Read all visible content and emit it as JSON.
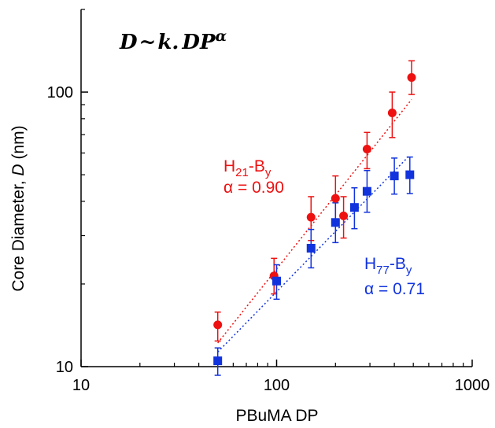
{
  "chart_data": {
    "type": "scatter",
    "xlabel": "PBuMA DP",
    "ylabel_prefix": "Core Diameter, ",
    "ylabel_symbol": "D",
    "ylabel_suffix": " (nm)",
    "x_scale": "log",
    "y_scale": "log",
    "xlim": [
      10,
      1000
    ],
    "ylim": [
      10,
      200
    ],
    "x_ticks": [
      10,
      100,
      1000
    ],
    "x_tick_labels": [
      "10",
      "100",
      "1000"
    ],
    "y_ticks": [
      10,
      100
    ],
    "y_tick_labels": [
      "10",
      "100"
    ],
    "grid": false,
    "formula": {
      "D": "D",
      "tilde": "~",
      "k": "k",
      "dot": ".",
      "DP": "DP",
      "alpha": "α"
    },
    "series": [
      {
        "label_main": "H",
        "label_sub": "21",
        "label_dash": "-B",
        "label_sub2": "y",
        "alpha_label": "α = 0.90",
        "color": "#ee1111",
        "marker": "circle",
        "x": [
          50,
          97,
          150,
          200,
          220,
          290,
          390,
          490
        ],
        "y": [
          14.2,
          21.4,
          35.0,
          41.0,
          35.4,
          62.0,
          84.0,
          113.0
        ],
        "yerr_low": [
          12.4,
          18.4,
          28.8,
          33.6,
          29.4,
          52.6,
          68.3,
          98.0
        ],
        "yerr_high": [
          15.8,
          24.8,
          41.6,
          49.5,
          41.6,
          71.3,
          100.0,
          130.0
        ],
        "fit_x": [
          50,
          490
        ],
        "fit_y": [
          12.2,
          94.0
        ]
      },
      {
        "label_main": "H",
        "label_sub": "77",
        "label_dash": "-B",
        "label_sub2": "y",
        "alpha_label": "α = 0.71",
        "color": "#1133dd",
        "marker": "square",
        "x": [
          50,
          100,
          150,
          200,
          250,
          290,
          400,
          480
        ],
        "y": [
          10.5,
          20.5,
          27.0,
          33.5,
          38.0,
          43.5,
          49.5,
          50.0
        ],
        "yerr_low": [
          9.3,
          17.6,
          22.9,
          28.3,
          31.8,
          36.5,
          42.5,
          42.7
        ],
        "yerr_high": [
          11.7,
          23.5,
          31.6,
          39.5,
          44.8,
          51.8,
          57.5,
          58.0
        ],
        "fit_x": [
          50,
          470
        ],
        "fit_y": [
          11.3,
          58.0
        ]
      }
    ]
  }
}
